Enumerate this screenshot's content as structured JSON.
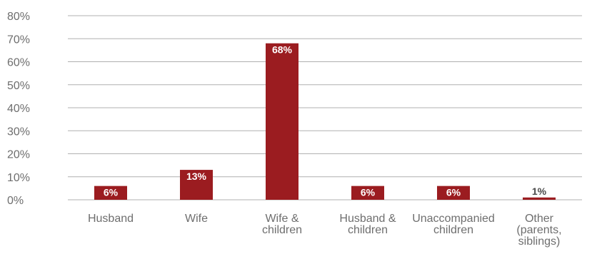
{
  "chart_data": {
    "type": "bar",
    "categories": [
      [
        "Husband"
      ],
      [
        "Wife"
      ],
      [
        "Wife &",
        "children"
      ],
      [
        "Husband &",
        "children"
      ],
      [
        "Unaccompanied",
        "children"
      ],
      [
        "Other",
        "(parents,",
        "siblings)"
      ]
    ],
    "values": [
      6,
      13,
      68,
      6,
      6,
      1
    ],
    "data_labels": [
      "6%",
      "13%",
      "68%",
      "6%",
      "6%",
      "1%"
    ],
    "yticks": [
      "0%",
      "10%",
      "20%",
      "30%",
      "40%",
      "50%",
      "60%",
      "70%",
      "80%"
    ],
    "ylim": [
      0,
      80
    ],
    "grid": true,
    "colors": {
      "bar": "#9b1c20",
      "grid": "#b0b0b0",
      "label_inside": "#ffffff",
      "label_outside": "#4a4a4a"
    }
  }
}
